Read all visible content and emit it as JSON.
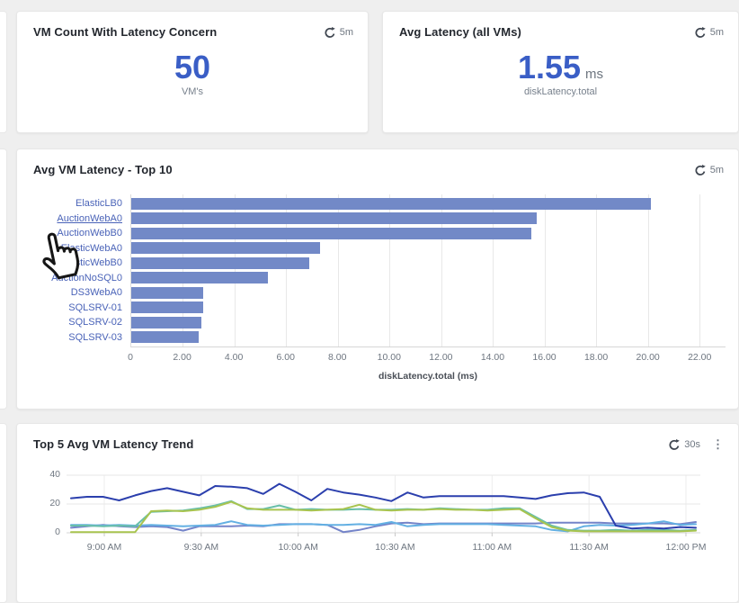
{
  "theme": {
    "background": "#efefef",
    "card_background": "#ffffff",
    "accent_blue": "#3a5ec6",
    "bar_color": "#7289c7",
    "bar_label_color": "#4a63b8",
    "muted_text": "#6e7680"
  },
  "cards": {
    "vm_count": {
      "title": "VM Count With Latency Concern",
      "refresh": "5m",
      "value": "50",
      "caption": "VM's"
    },
    "avg_latency": {
      "title": "Avg Latency (all VMs)",
      "refresh": "5m",
      "value": "1.55",
      "unit": "ms",
      "caption": "diskLatency.total"
    },
    "top10": {
      "title": "Avg VM Latency - Top 10",
      "refresh": "5m"
    },
    "trend": {
      "title": "Top 5 Avg VM Latency Trend",
      "refresh": "30s"
    }
  },
  "chart_data": [
    {
      "id": "avg-vm-latency-top-10",
      "type": "bar",
      "orientation": "horizontal",
      "title": "Avg VM Latency - Top 10",
      "categories": [
        "ElasticLB0",
        "AuctionWebA0",
        "AuctionWebB0",
        "ElasticWebA0",
        "ElasticWebB0",
        "AuctionNoSQL0",
        "DS3WebA0",
        "SQLSRV-01",
        "SQLSRV-02",
        "SQLSRV-03"
      ],
      "values": [
        20.1,
        15.7,
        15.5,
        7.3,
        6.9,
        5.3,
        2.8,
        2.8,
        2.7,
        2.6
      ],
      "xlabel": "diskLatency.total (ms)",
      "xlim": [
        0,
        23
      ],
      "xticks": [
        0,
        2,
        4,
        6,
        8,
        10,
        12,
        14,
        16,
        18,
        20,
        22
      ],
      "xtick_labels": [
        "0",
        "2.00",
        "4.00",
        "6.00",
        "8.00",
        "10.00",
        "12.00",
        "14.00",
        "16.00",
        "18.00",
        "20.00",
        "22.00"
      ],
      "hovered_category": "AuctionWebA0",
      "grid": true,
      "legend": false
    },
    {
      "id": "top-5-avg-vm-latency-trend",
      "type": "line",
      "title": "Top 5 Avg VM Latency Trend",
      "ylim": [
        0,
        40
      ],
      "yticks": [
        0,
        20,
        40
      ],
      "x_tick_labels": [
        "9:00 AM",
        "9:30 AM",
        "10:00 AM",
        "10:30 AM",
        "11:00 AM",
        "11:30 AM",
        "12:00 PM"
      ],
      "grid": true,
      "legend": false,
      "series": [
        {
          "name": "dark-blue",
          "color": "#2b3fad",
          "values": [
            24,
            25,
            25,
            22.5,
            26,
            29,
            31,
            28.5,
            26,
            32.5,
            32,
            31,
            27,
            34,
            28.5,
            22.5,
            30.5,
            28,
            26.5,
            24.5,
            22,
            28,
            24.5,
            25.5,
            25.5,
            25.5,
            25.5,
            25.5,
            24.5,
            23.5,
            26,
            27.5,
            28,
            25,
            5,
            3,
            3.5,
            3,
            4,
            3.5
          ]
        },
        {
          "name": "green",
          "color": "#a8c44f",
          "values": [
            0.5,
            0.5,
            0.5,
            0.5,
            0.5,
            15,
            15.5,
            15,
            16,
            18,
            21.5,
            17,
            16,
            16,
            16,
            15.5,
            16,
            16.5,
            19.5,
            16,
            15.5,
            16,
            16,
            16.5,
            16,
            16,
            15.5,
            16,
            16.5,
            10,
            4,
            1.5,
            1,
            1,
            1,
            1,
            1,
            1,
            1,
            1.5
          ]
        },
        {
          "name": "teal",
          "color": "#69bfa9",
          "values": [
            5,
            5,
            4.5,
            5,
            4.5,
            14.5,
            15,
            15.5,
            17,
            19,
            22,
            16.5,
            16.5,
            19,
            16,
            16.5,
            16,
            16,
            16.5,
            16,
            16,
            16.5,
            16,
            17,
            16.5,
            16,
            16,
            17,
            17,
            11,
            5,
            2,
            1.5,
            1.5,
            2,
            1.5,
            2,
            2,
            1.5,
            2
          ]
        },
        {
          "name": "light-blue",
          "color": "#63b0e3",
          "values": [
            5.5,
            5.5,
            5,
            5.5,
            5,
            5.5,
            5,
            4.5,
            5,
            5.5,
            8,
            5.5,
            5,
            5.5,
            6,
            6,
            5.5,
            5.5,
            6,
            5.5,
            7.5,
            4.5,
            5.5,
            6,
            6,
            6,
            6,
            5.5,
            5,
            4.5,
            2,
            1,
            4.5,
            5.5,
            5,
            5.5,
            6.5,
            8,
            5.5,
            6
          ]
        },
        {
          "name": "slate-blue",
          "color": "#7484c9",
          "values": [
            3.5,
            4.5,
            5.5,
            4.5,
            4,
            4.5,
            4,
            1.5,
            4.5,
            4.5,
            4.5,
            5,
            4.5,
            6,
            6,
            6,
            5.5,
            0.5,
            2,
            4.5,
            6.5,
            7,
            6,
            6.5,
            6.5,
            6.5,
            6.5,
            6.5,
            6.5,
            6.5,
            7,
            7,
            7,
            7,
            6.5,
            6.5,
            6.5,
            6.5,
            6,
            7.5
          ]
        }
      ]
    }
  ]
}
